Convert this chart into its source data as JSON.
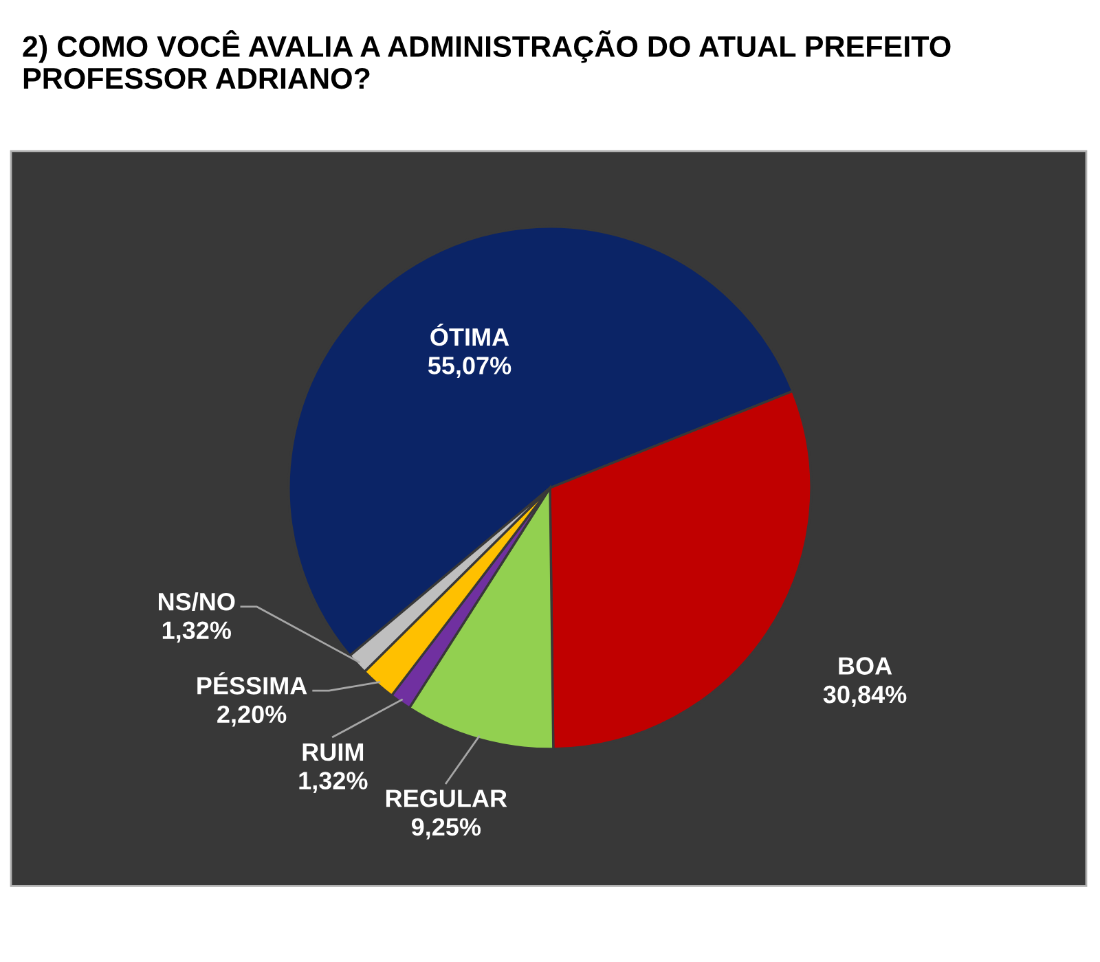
{
  "chart_data": {
    "type": "pie",
    "title": "2) COMO VOCÊ AVALIA A ADMINISTRAÇÃO DO ATUAL PREFEITO PROFESSOR ADRIANO?",
    "categories": [
      "ÓTIMA",
      "BOA",
      "REGULAR",
      "RUIM",
      "PÉSSIMA",
      "NS/NO"
    ],
    "values": [
      55.07,
      30.84,
      9.25,
      1.32,
      2.2,
      1.32
    ],
    "value_labels": [
      "55,07%",
      "30,84%",
      "9,25%",
      "1,32%",
      "2,20%",
      "1,32%"
    ],
    "colors": [
      "#0b2466",
      "#c00000",
      "#92d050",
      "#7030a0",
      "#ffc000",
      "#bfbfbf"
    ]
  }
}
